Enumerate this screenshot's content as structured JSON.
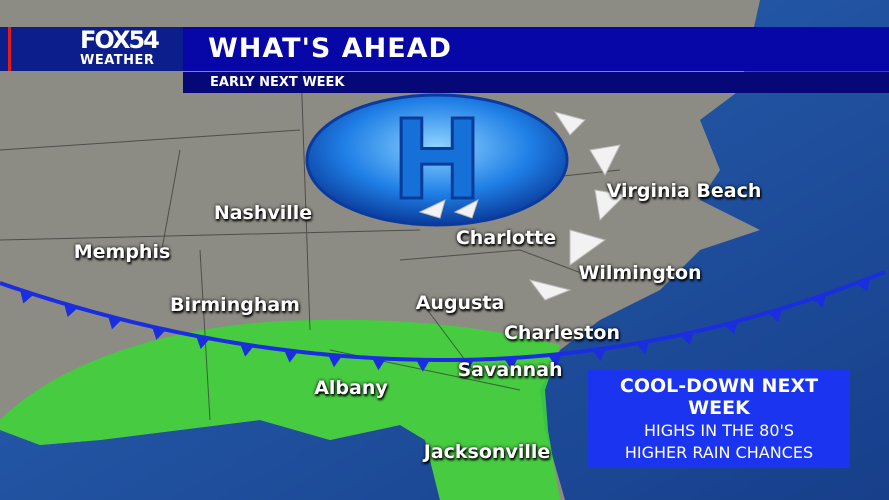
{
  "header": {
    "logo_line1": "FOX54",
    "logo_line2": "WEATHER",
    "title": "WHAT'S AHEAD",
    "subtitle": "EARLY NEXT WEEK"
  },
  "map": {
    "pressure_center": {
      "label": "H",
      "type": "high",
      "color": "#2a8ff0"
    },
    "front_type": "cold",
    "front_color": "#1a2ee0",
    "rain_area_color": "#3fd23a",
    "cities": [
      {
        "name": "Nashville"
      },
      {
        "name": "Memphis"
      },
      {
        "name": "Birmingham"
      },
      {
        "name": "Charlotte"
      },
      {
        "name": "Virginia Beach"
      },
      {
        "name": "Wilmington"
      },
      {
        "name": "Augusta"
      },
      {
        "name": "Charleston"
      },
      {
        "name": "Savannah"
      },
      {
        "name": "Albany"
      },
      {
        "name": "Jacksonville"
      }
    ]
  },
  "info_box": {
    "title": "COOL-DOWN NEXT WEEK",
    "line1": "HIGHS IN THE 80'S",
    "line2": "HIGHER RAIN CHANCES",
    "color": "#1a34f0"
  }
}
